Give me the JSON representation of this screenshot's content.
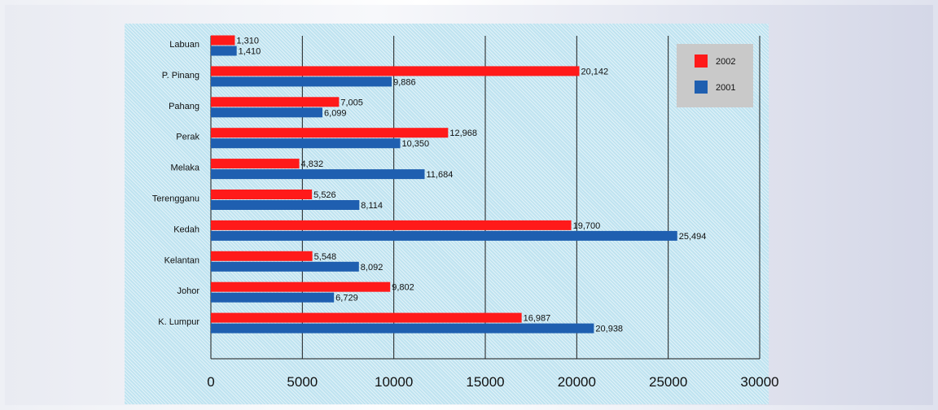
{
  "chart_data": {
    "type": "bar",
    "orientation": "horizontal",
    "categories": [
      "Labuan",
      "P. Pinang",
      "Pahang",
      "Perak",
      "Melaka",
      "Terengganu",
      "Kedah",
      "Kelantan",
      "Johor",
      "K. Lumpur"
    ],
    "series": [
      {
        "name": "2002",
        "color": "#ff1a1a",
        "values": [
          1310,
          20142,
          7005,
          12968,
          4832,
          5526,
          19700,
          5548,
          9802,
          16987
        ],
        "labels": [
          "1,310",
          "20,142",
          "7,005",
          "12,968",
          "4,832",
          "5,526",
          "19,700",
          "5,548",
          "9,802",
          "16,987"
        ]
      },
      {
        "name": "2001",
        "color": "#1f5fb0",
        "values": [
          1410,
          9886,
          6099,
          10350,
          11684,
          8114,
          25494,
          8092,
          6729,
          20938
        ],
        "labels": [
          "1,410",
          "9,886",
          "6,099",
          "10,350",
          "11,684",
          "8,114",
          "25,494",
          "8,092",
          "6,729",
          "20,938"
        ]
      }
    ],
    "xlim": [
      0,
      30000
    ],
    "xticks": [
      "0",
      "5000",
      "10000",
      "15000",
      "20000",
      "25000",
      "30000"
    ],
    "grid": true,
    "legend_position": "top-right",
    "title": "",
    "xlabel": "",
    "ylabel": ""
  }
}
